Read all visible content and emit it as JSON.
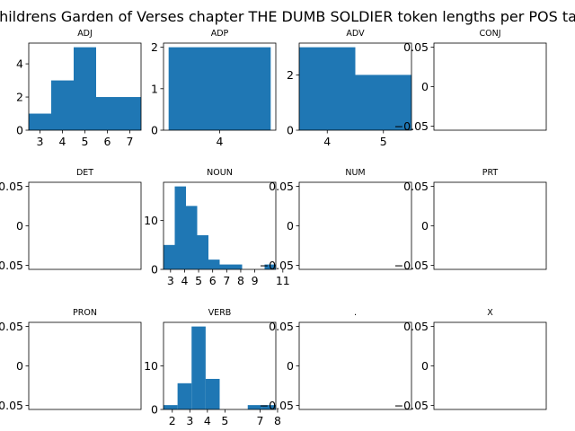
{
  "figure_title": "Childrens Garden of Verses chapter THE DUMB SOLDIER token lengths per POS tag",
  "bar_color": "#1f77b4",
  "chart_data": [
    {
      "type": "bar",
      "title": "ADJ",
      "bins": [
        {
          "x0": 2.5,
          "x1": 3.5,
          "value": 1
        },
        {
          "x0": 3.5,
          "x1": 4.5,
          "value": 3
        },
        {
          "x0": 4.5,
          "x1": 5.5,
          "value": 5
        },
        {
          "x0": 5.5,
          "x1": 6.5,
          "value": 2
        },
        {
          "x0": 6.5,
          "x1": 7.5,
          "value": 2
        }
      ],
      "xlim": [
        2.5,
        7.5
      ],
      "ylim": [
        0,
        5.25
      ],
      "xticks": [
        3,
        4,
        5,
        6,
        7
      ],
      "yticks": [
        0,
        2,
        4
      ]
    },
    {
      "type": "bar",
      "title": "ADP",
      "bins": [
        {
          "x0": 3.7,
          "x1": 4.3,
          "value": 2
        }
      ],
      "xlim": [
        3.67,
        4.33
      ],
      "ylim": [
        0,
        2.1
      ],
      "xticks": [
        4
      ],
      "yticks": [
        0,
        1,
        2
      ]
    },
    {
      "type": "bar",
      "title": "ADV",
      "bins": [
        {
          "x0": 3.5,
          "x1": 4.5,
          "value": 3
        },
        {
          "x0": 4.5,
          "x1": 5.5,
          "value": 2
        }
      ],
      "xlim": [
        3.5,
        5.5
      ],
      "ylim": [
        0,
        3.15
      ],
      "xticks": [
        4,
        5
      ],
      "yticks": [
        0,
        2
      ]
    },
    {
      "type": "bar",
      "title": "CONJ",
      "bins": [],
      "xlim": [
        0,
        1
      ],
      "ylim": [
        -0.055,
        0.055
      ],
      "xticks": [],
      "yticks": [
        -0.05,
        0.0,
        0.05
      ]
    },
    {
      "type": "bar",
      "title": "DET",
      "bins": [],
      "xlim": [
        0,
        1
      ],
      "ylim": [
        -0.055,
        0.055
      ],
      "xticks": [],
      "yticks": [
        -0.05,
        0.0,
        0.05
      ]
    },
    {
      "type": "bar",
      "title": "NOUN",
      "bins": [
        {
          "x0": 2.5,
          "x1": 3.3,
          "value": 5
        },
        {
          "x0": 3.3,
          "x1": 4.1,
          "value": 17
        },
        {
          "x0": 4.1,
          "x1": 4.9,
          "value": 13
        },
        {
          "x0": 4.9,
          "x1": 5.7,
          "value": 7
        },
        {
          "x0": 5.7,
          "x1": 6.5,
          "value": 2
        },
        {
          "x0": 6.5,
          "x1": 7.3,
          "value": 1
        },
        {
          "x0": 7.3,
          "x1": 8.1,
          "value": 1
        },
        {
          "x0": 8.1,
          "x1": 8.9,
          "value": 0
        },
        {
          "x0": 8.9,
          "x1": 9.7,
          "value": 0
        },
        {
          "x0": 9.7,
          "x1": 10.5,
          "value": 1
        }
      ],
      "xlim": [
        2.5,
        10.5
      ],
      "ylim": [
        0,
        17.85
      ],
      "xticks": [
        3,
        4,
        5,
        6,
        7,
        8,
        9,
        11
      ],
      "yticks": [
        0,
        10
      ]
    },
    {
      "type": "bar",
      "title": "NUM",
      "bins": [],
      "xlim": [
        0,
        1
      ],
      "ylim": [
        -0.055,
        0.055
      ],
      "xticks": [],
      "yticks": [
        -0.05,
        0.0,
        0.05
      ]
    },
    {
      "type": "bar",
      "title": "PRT",
      "bins": [],
      "xlim": [
        0,
        1
      ],
      "ylim": [
        -0.055,
        0.055
      ],
      "xticks": [],
      "yticks": [
        -0.05,
        0.0,
        0.05
      ]
    },
    {
      "type": "bar",
      "title": "PRON",
      "bins": [],
      "xlim": [
        0,
        1
      ],
      "ylim": [
        -0.055,
        0.055
      ],
      "xticks": [],
      "yticks": [
        -0.05,
        0.0,
        0.05
      ]
    },
    {
      "type": "bar",
      "title": "VERB",
      "bins": [
        {
          "x0": 1.5,
          "x1": 2.3,
          "value": 1
        },
        {
          "x0": 2.3,
          "x1": 3.1,
          "value": 6
        },
        {
          "x0": 3.1,
          "x1": 3.9,
          "value": 19
        },
        {
          "x0": 3.9,
          "x1": 4.7,
          "value": 7
        },
        {
          "x0": 4.7,
          "x1": 5.5,
          "value": 0
        },
        {
          "x0": 5.5,
          "x1": 6.3,
          "value": 0
        },
        {
          "x0": 6.3,
          "x1": 7.1,
          "value": 1
        },
        {
          "x0": 7.1,
          "x1": 7.9,
          "value": 1
        }
      ],
      "xlim": [
        1.5,
        7.9
      ],
      "ylim": [
        0,
        19.95
      ],
      "xticks": [
        2,
        3,
        4,
        5,
        7,
        8
      ],
      "yticks": [
        0,
        10
      ]
    },
    {
      "type": "bar",
      "title": ".",
      "bins": [],
      "xlim": [
        0,
        1
      ],
      "ylim": [
        -0.055,
        0.055
      ],
      "xticks": [],
      "yticks": [
        -0.05,
        0.0,
        0.05
      ]
    },
    {
      "type": "bar",
      "title": "X",
      "bins": [],
      "xlim": [
        0,
        1
      ],
      "ylim": [
        -0.055,
        0.055
      ],
      "xticks": [],
      "yticks": [
        -0.05,
        0.0,
        0.05
      ]
    }
  ]
}
